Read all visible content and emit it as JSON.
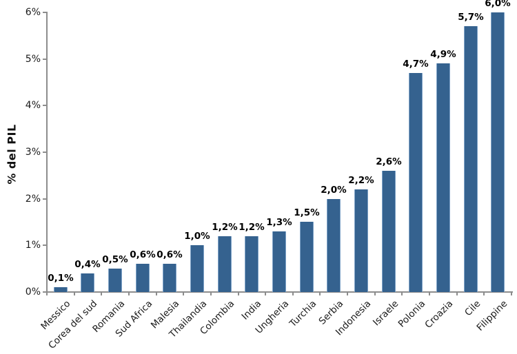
{
  "chart_data": {
    "type": "bar",
    "title": "",
    "xlabel": "",
    "ylabel": "% del PIL",
    "categories": [
      "Messico",
      "Corea del sud",
      "Romania",
      "Sud Africa",
      "Malesia",
      "Thailandia",
      "Colombia",
      "India",
      "Ungheria",
      "Turchia",
      "Serbia",
      "Indonesia",
      "Israele",
      "Polonia",
      "Croazia",
      "Cile",
      "Filippine"
    ],
    "values": [
      0.1,
      0.4,
      0.5,
      0.6,
      0.6,
      1.0,
      1.2,
      1.2,
      1.3,
      1.5,
      2.0,
      2.2,
      2.6,
      4.7,
      4.9,
      5.7,
      6.0
    ],
    "value_labels": [
      "0,1%",
      "0,4%",
      "0,5%",
      "0,6%",
      "0,6%",
      "1,0%",
      "1,2%",
      "1,2%",
      "1,3%",
      "1,5%",
      "2,0%",
      "2,2%",
      "2,6%",
      "4,7%",
      "4,9%",
      "5,7%",
      "6,0%"
    ],
    "yticks": [
      0,
      1,
      2,
      3,
      4,
      5,
      6
    ],
    "ytick_labels": [
      "0%",
      "1%",
      "2%",
      "3%",
      "4%",
      "5%",
      "6%"
    ],
    "ylim": [
      0,
      6
    ],
    "grid": false,
    "legend": "none",
    "colors": {
      "bar": "#35628F",
      "bar_edge": "#7FA3C8",
      "axis": "#8C8C8C",
      "value_label": "#000000",
      "tick_label": "#1A1A1A",
      "background": "#FFFFFF"
    }
  }
}
